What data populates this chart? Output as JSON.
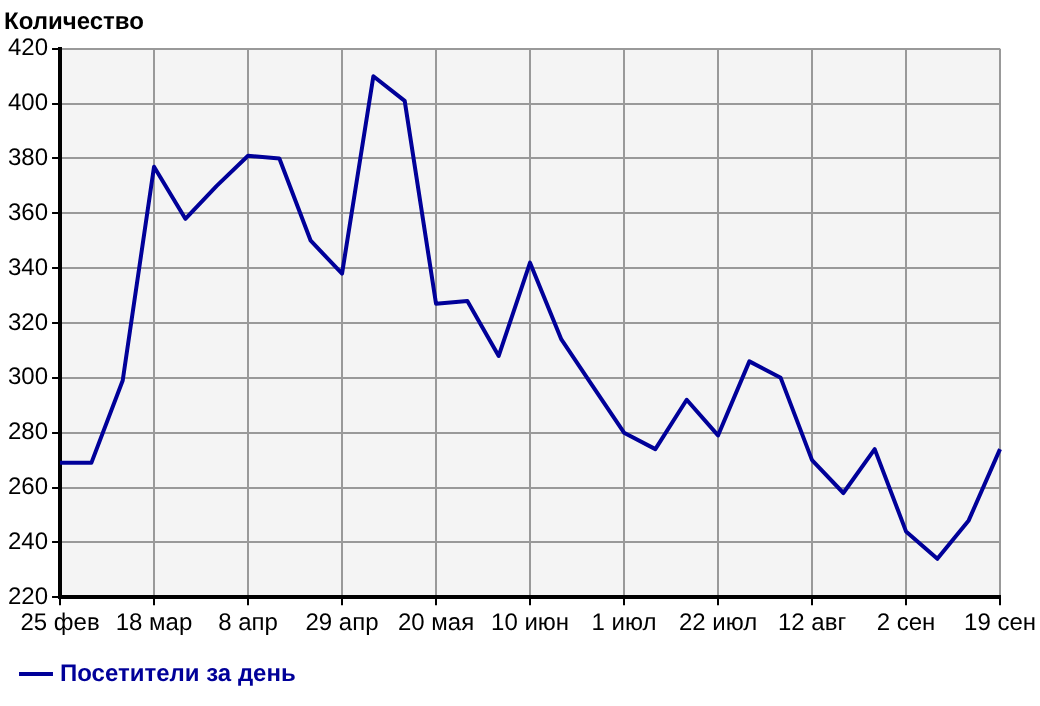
{
  "chart_data": {
    "type": "line",
    "ylabel": "Количество",
    "categories": [
      "25 фев",
      null,
      null,
      "18 мар",
      null,
      null,
      "8 апр",
      null,
      null,
      "29 апр",
      null,
      null,
      "20 мая",
      null,
      null,
      "10 июн",
      null,
      null,
      "1 июл",
      null,
      null,
      "22 июл",
      null,
      null,
      "12 авг",
      null,
      null,
      "2 сен",
      null,
      null,
      "19 сен"
    ],
    "series": [
      {
        "name": "Посетители за день",
        "color": "#000099",
        "values": [
          269,
          269,
          299,
          377,
          358,
          370,
          381,
          380,
          350,
          338,
          410,
          401,
          327,
          328,
          308,
          342,
          314,
          297,
          280,
          274,
          292,
          279,
          306,
          300,
          270,
          258,
          274,
          244,
          234,
          248,
          274
        ]
      }
    ],
    "ylim": [
      220,
      420
    ],
    "yticks": [
      220,
      240,
      260,
      280,
      300,
      320,
      340,
      360,
      380,
      400,
      420
    ],
    "grid": true,
    "legend": "bottom left",
    "marker": "none",
    "line_style": "solid"
  }
}
